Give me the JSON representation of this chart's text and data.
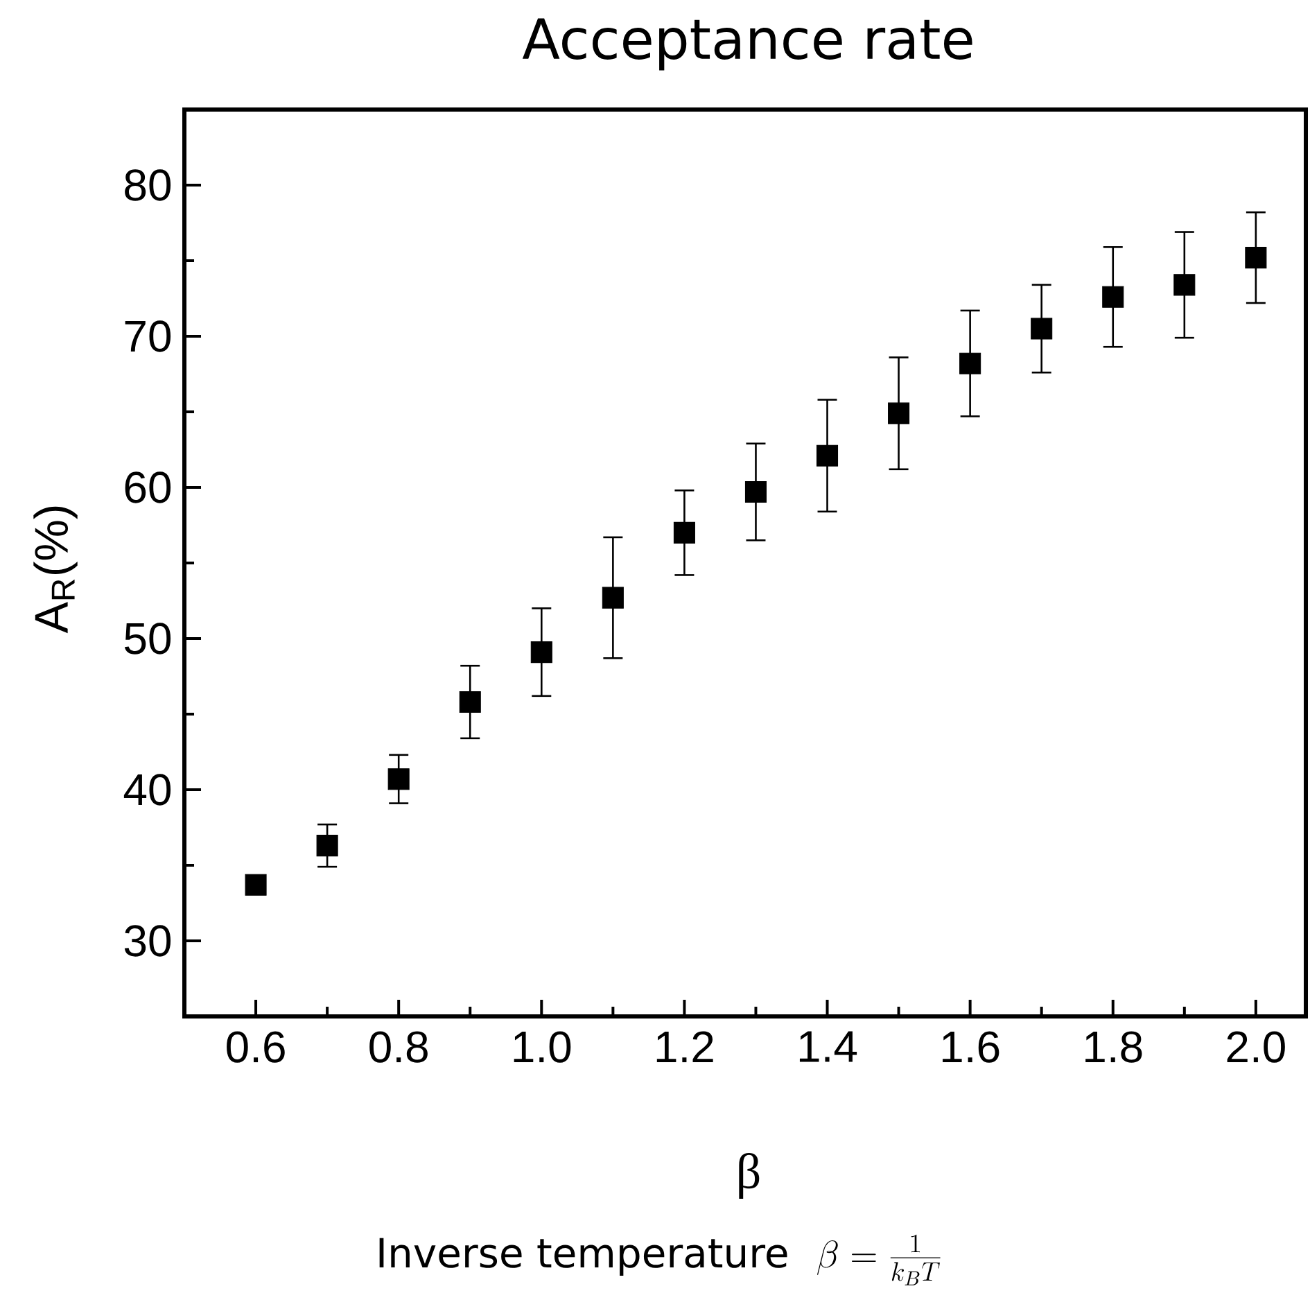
{
  "chart_data": {
    "type": "scatter",
    "title": "Acceptance rate",
    "xlabel": "β",
    "ylabel": "A$_{R}$(%)",
    "annotations": [
      "Inverse temperature",
      "\\beta = \\frac{1}{k_{B}T}"
    ],
    "x": [
      0.6,
      0.7,
      0.8,
      0.9,
      1.0,
      1.1,
      1.2,
      1.3,
      1.4,
      1.5,
      1.6,
      1.7,
      1.8,
      1.9,
      2.0
    ],
    "values": [
      33.7,
      36.3,
      40.7,
      45.8,
      49.1,
      52.7,
      57.0,
      59.7,
      62.1,
      64.9,
      68.2,
      70.5,
      72.6,
      73.4,
      75.2
    ],
    "errors": [
      0.3,
      1.4,
      1.6,
      2.4,
      2.9,
      4.0,
      2.8,
      3.2,
      3.7,
      3.7,
      3.5,
      2.9,
      3.3,
      3.5,
      3.0
    ],
    "color": "#000000",
    "marker": "square",
    "xlim": [
      0.5,
      2.07
    ],
    "ylim": [
      25,
      85
    ],
    "xticks": [
      0.6,
      {
        "value": 0.7,
        "label": null
      },
      0.8,
      {
        "value": 0.9,
        "label": null
      },
      {
        "value": 1.0,
        "label": "1.0"
      },
      {
        "value": 1.1,
        "label": null
      },
      1.2,
      {
        "value": 1.3,
        "label": null
      },
      1.4,
      {
        "value": 1.5,
        "label": null
      },
      1.6,
      {
        "value": 1.7,
        "label": null
      },
      1.8,
      {
        "value": 1.9,
        "label": null
      },
      {
        "value": 2.0,
        "label": "2.0"
      }
    ],
    "yticks": [
      30,
      {
        "value": 35,
        "label": null
      },
      40,
      {
        "value": 45,
        "label": null
      },
      50,
      {
        "value": 55,
        "label": null
      },
      60,
      {
        "value": 65,
        "label": null
      },
      70,
      {
        "value": 75,
        "label": null
      },
      80
    ],
    "grid": false,
    "legend": false
  }
}
